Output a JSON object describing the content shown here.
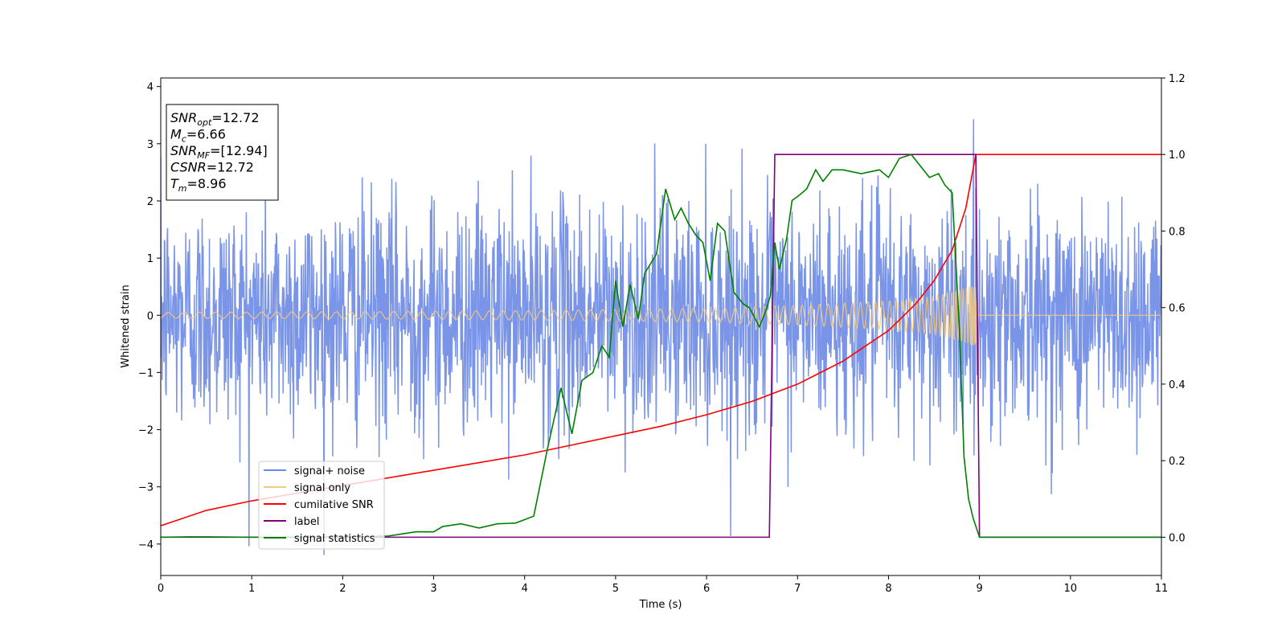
{
  "chart_data": {
    "type": "line",
    "xlabel": "Time (s)",
    "ylabel": "Whitened strain",
    "xlim": [
      0,
      11
    ],
    "ylim_left": [
      -4.55,
      4.15
    ],
    "ylim_right": [
      -0.1,
      1.2
    ],
    "xticks": [
      "0",
      "1",
      "2",
      "3",
      "4",
      "5",
      "6",
      "7",
      "8",
      "9",
      "10",
      "11"
    ],
    "yticks_left": [
      "−4",
      "−3",
      "−2",
      "−1",
      "0",
      "1",
      "2",
      "3",
      "4"
    ],
    "yticks_right": [
      "0.0",
      "0.2",
      "0.4",
      "0.6",
      "0.8",
      "1.0",
      "1.2"
    ],
    "grid": false,
    "legend_placement": "lower-left",
    "info_box": [
      {
        "sym": "SNR",
        "sub": "opt",
        "val": "=12.72"
      },
      {
        "sym": "M",
        "sub": "c",
        "val": "=6.66"
      },
      {
        "sym": "SNR",
        "sub": "MF",
        "val": "=[12.94]"
      },
      {
        "sym": "CSNR",
        "sub": "",
        "val": "=12.72"
      },
      {
        "sym": "T",
        "sub": "m",
        "val": "=8.96"
      }
    ],
    "series": [
      {
        "name": "signal+ noise",
        "axis": "left",
        "color": "#6b89e6",
        "kind": "noise",
        "sigma": 1.0,
        "n": 2200,
        "x_end": 11
      },
      {
        "name": "signal only",
        "axis": "left",
        "color": "#f5c97e",
        "kind": "chirp",
        "t_merge": 8.96,
        "amplitude_envelope": [
          [
            0.0,
            0.05
          ],
          [
            2.0,
            0.06
          ],
          [
            4.0,
            0.08
          ],
          [
            6.0,
            0.12
          ],
          [
            7.0,
            0.17
          ],
          [
            8.0,
            0.25
          ],
          [
            8.5,
            0.33
          ],
          [
            8.8,
            0.45
          ],
          [
            8.96,
            0.55
          ]
        ]
      },
      {
        "name": "cumilative SNR",
        "axis": "right",
        "color": "#ff0000",
        "x": [
          0,
          0.5,
          1,
          1.5,
          2,
          2.5,
          3,
          3.5,
          4,
          4.5,
          5,
          5.5,
          6,
          6.5,
          7,
          7.5,
          8,
          8.3,
          8.5,
          8.7,
          8.85,
          8.96,
          9.0,
          11
        ],
        "y": [
          0.03,
          0.07,
          0.095,
          0.115,
          0.135,
          0.155,
          0.175,
          0.195,
          0.215,
          0.24,
          0.265,
          0.29,
          0.32,
          0.355,
          0.4,
          0.46,
          0.54,
          0.61,
          0.67,
          0.75,
          0.86,
          1.0,
          1.0,
          1.0
        ]
      },
      {
        "name": "label",
        "axis": "right",
        "color": "#800080",
        "x": [
          0,
          6.69,
          6.75,
          8.96,
          9.0,
          11
        ],
        "y": [
          0,
          0,
          1,
          1,
          0,
          0
        ]
      },
      {
        "name": "signal statistics",
        "axis": "right",
        "color": "#008000",
        "x": [
          0,
          0.3,
          0.5,
          1,
          2,
          2.5,
          2.8,
          3.0,
          3.1,
          3.3,
          3.5,
          3.7,
          3.9,
          4.1,
          4.25,
          4.4,
          4.52,
          4.63,
          4.75,
          4.85,
          4.93,
          5.0,
          5.08,
          5.16,
          5.25,
          5.32,
          5.45,
          5.55,
          5.65,
          5.72,
          5.8,
          5.88,
          5.96,
          6.04,
          6.12,
          6.2,
          6.3,
          6.4,
          6.47,
          6.58,
          6.65,
          6.7,
          6.75,
          6.8,
          6.88,
          6.94,
          7.0,
          7.1,
          7.2,
          7.28,
          7.38,
          7.5,
          7.7,
          7.9,
          8.0,
          8.12,
          8.25,
          8.35,
          8.45,
          8.55,
          8.62,
          8.7,
          8.78,
          8.83,
          8.88,
          8.93,
          9.0,
          10,
          11
        ],
        "y": [
          0,
          0.001,
          0.001,
          0,
          0,
          0.003,
          0.014,
          0.014,
          0.028,
          0.035,
          0.024,
          0.035,
          0.037,
          0.055,
          0.23,
          0.39,
          0.27,
          0.41,
          0.43,
          0.5,
          0.47,
          0.67,
          0.55,
          0.66,
          0.57,
          0.69,
          0.74,
          0.91,
          0.83,
          0.86,
          0.82,
          0.79,
          0.77,
          0.67,
          0.82,
          0.8,
          0.64,
          0.61,
          0.6,
          0.55,
          0.59,
          0.63,
          0.77,
          0.7,
          0.78,
          0.88,
          0.89,
          0.91,
          0.96,
          0.93,
          0.96,
          0.96,
          0.95,
          0.96,
          0.94,
          0.99,
          1.0,
          0.97,
          0.94,
          0.95,
          0.92,
          0.9,
          0.54,
          0.21,
          0.1,
          0.05,
          0.0,
          0.0,
          0.0
        ]
      }
    ]
  }
}
